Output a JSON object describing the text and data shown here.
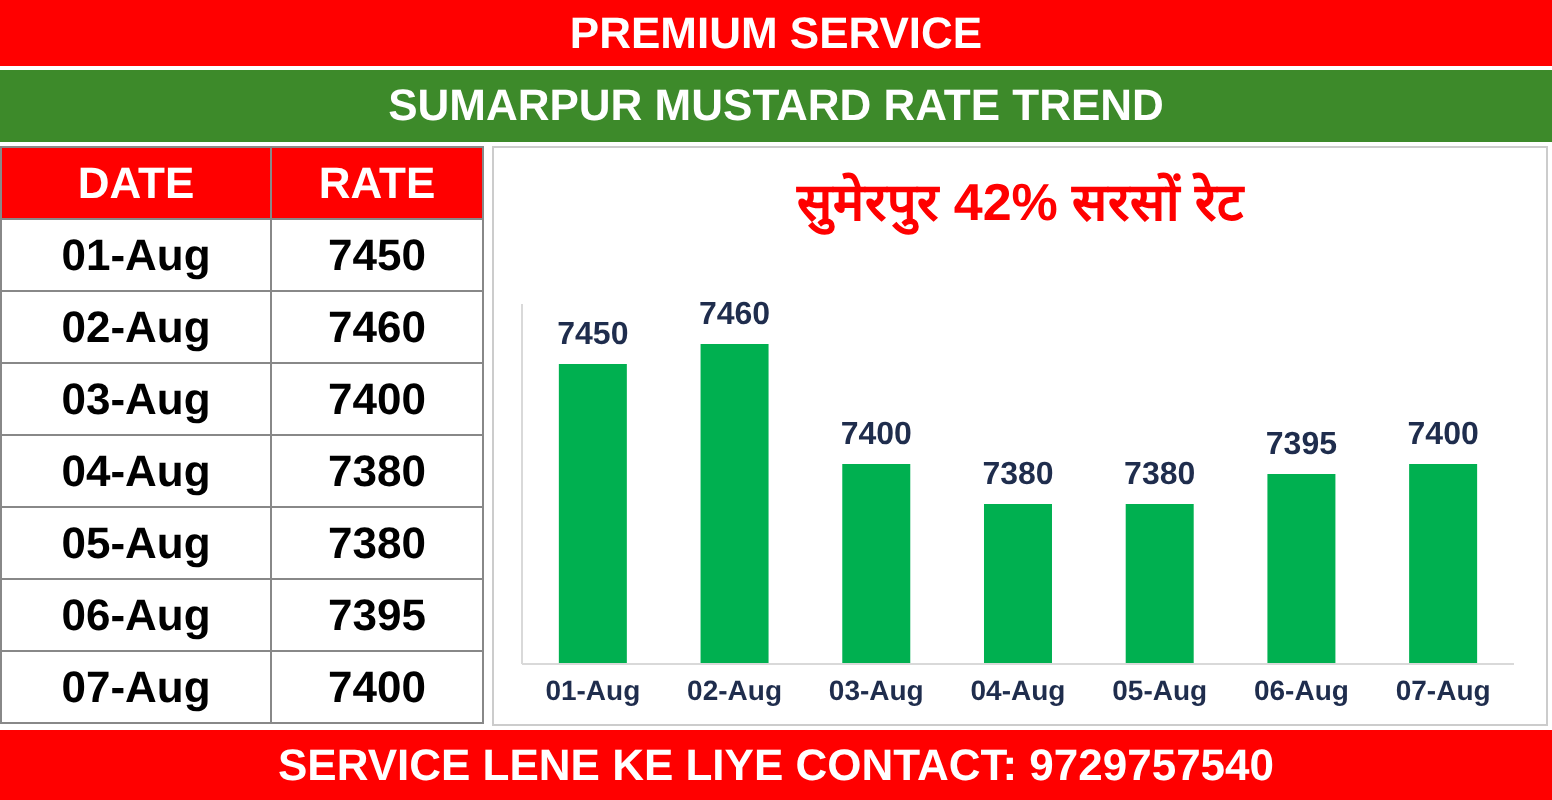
{
  "chart_data": [
    {
      "type": "other",
      "title": "SUMARPUR MUSTARD RATE TREND",
      "annotations": [
        "PREMIUM SERVICE",
        "DATE",
        "RATE",
        "SERVICE LENE KE LIYE CONTACT: 9729757540"
      ],
      "categories": [
        "01-Aug",
        "02-Aug",
        "03-Aug",
        "04-Aug",
        "05-Aug",
        "06-Aug",
        "07-Aug"
      ],
      "values": [
        7450,
        7460,
        7400,
        7380,
        7380,
        7395,
        7400
      ],
      "data_labels": true
    },
    {
      "type": "bar",
      "title": "सुमेरपुर 42% सरसों रेट",
      "categories": [
        "01-Aug",
        "02-Aug",
        "03-Aug",
        "04-Aug",
        "05-Aug",
        "06-Aug",
        "07-Aug"
      ],
      "values": [
        7450,
        7460,
        7400,
        7380,
        7380,
        7395,
        7400
      ],
      "color": "#00b050",
      "ylim": [
        7300,
        7480
      ],
      "tick_labels": "x",
      "data_labels": true
    }
  ]
}
